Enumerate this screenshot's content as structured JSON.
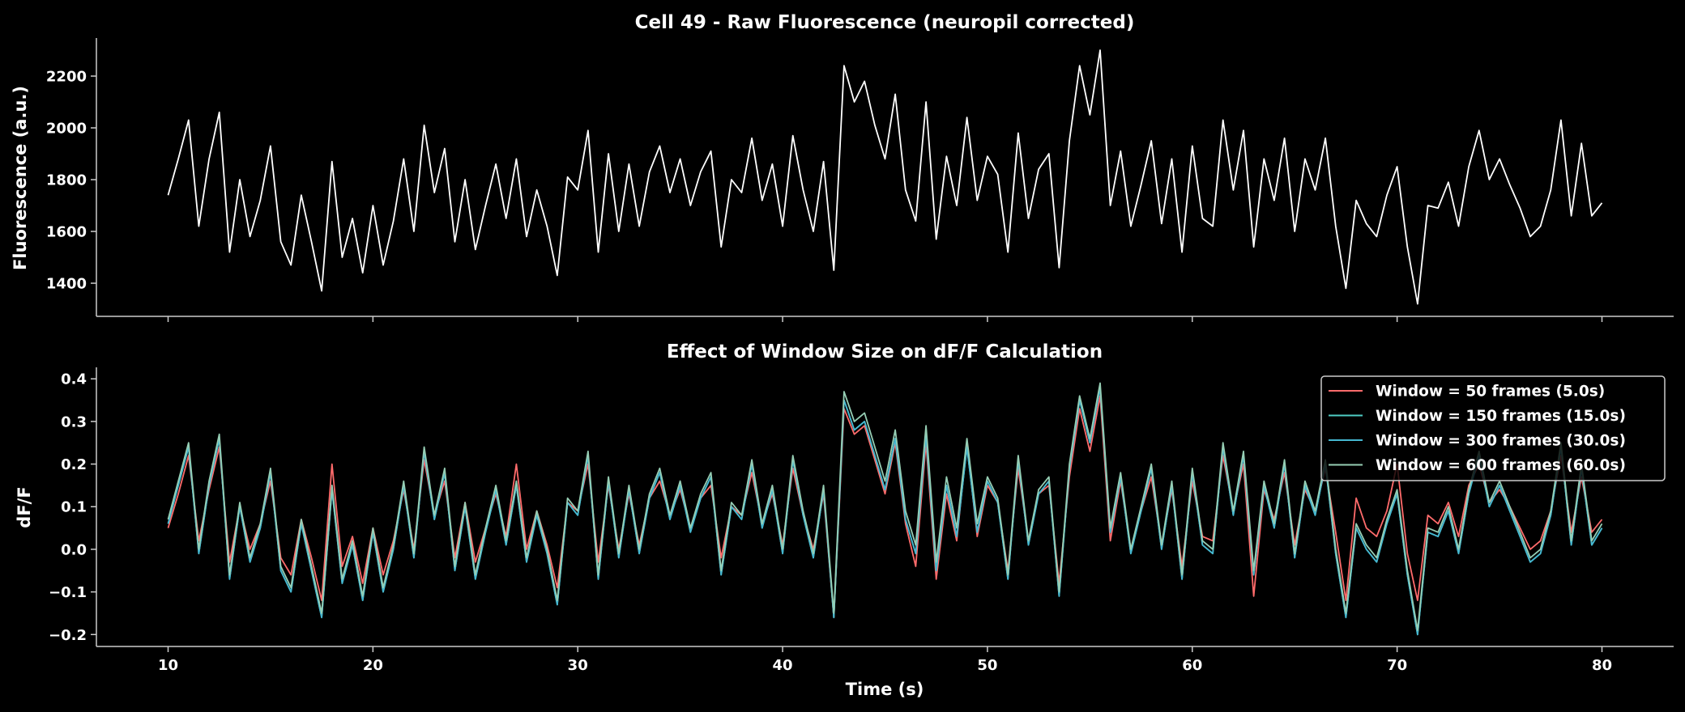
{
  "chart_data": [
    {
      "type": "line",
      "title": "Cell 49 - Raw Fluorescence (neuropil corrected)",
      "xlabel": "",
      "ylabel": "Fluorescence (a.u.)",
      "xlim": [
        6.5,
        83.5
      ],
      "ylim": [
        1272,
        2347
      ],
      "xticks": [
        10,
        20,
        30,
        40,
        50,
        60,
        70,
        80
      ],
      "yticks": [
        "1400",
        "1600",
        "1800",
        "2000",
        "2200"
      ],
      "x_start": 10,
      "x_end": 80,
      "series": [
        {
          "name": "Raw fluorescence",
          "color": "#ffffff",
          "values": [
            1740,
            1880,
            2030,
            1620,
            1880,
            2060,
            1520,
            1800,
            1580,
            1720,
            1930,
            1560,
            1470,
            1740,
            1560,
            1370,
            1870,
            1500,
            1650,
            1440,
            1700,
            1470,
            1640,
            1880,
            1600,
            2010,
            1750,
            1920,
            1560,
            1800,
            1530,
            1700,
            1860,
            1650,
            1880,
            1580,
            1760,
            1620,
            1430,
            1810,
            1760,
            1990,
            1520,
            1900,
            1600,
            1860,
            1620,
            1830,
            1930,
            1750,
            1880,
            1700,
            1830,
            1910,
            1540,
            1800,
            1750,
            1960,
            1720,
            1860,
            1620,
            1970,
            1760,
            1600,
            1870,
            1450,
            2240,
            2100,
            2180,
            2010,
            1880,
            2130,
            1760,
            1640,
            2100,
            1570,
            1890,
            1700,
            2040,
            1720,
            1890,
            1820,
            1520,
            1980,
            1650,
            1840,
            1900,
            1460,
            1950,
            2240,
            2050,
            2300,
            1700,
            1910,
            1620,
            1780,
            1950,
            1630,
            1880,
            1520,
            1930,
            1650,
            1620,
            2030,
            1760,
            1990,
            1540,
            1880,
            1720,
            1960,
            1600,
            1880,
            1760,
            1960,
            1620,
            1380,
            1720,
            1630,
            1580,
            1740,
            1850,
            1540,
            1320,
            1700,
            1690,
            1790,
            1620,
            1850,
            1990,
            1800,
            1880,
            1780,
            1690,
            1580,
            1620,
            1760,
            2030,
            1660,
            1940,
            1660,
            1710
          ]
        }
      ]
    },
    {
      "type": "line",
      "title": "Effect of Window Size on dF/F Calculation",
      "xlabel": "Time (s)",
      "ylabel": "dF/F",
      "xlim": [
        6.5,
        83.5
      ],
      "ylim": [
        -0.228,
        0.427
      ],
      "xticks": [
        10,
        20,
        30,
        40,
        50,
        60,
        70,
        80
      ],
      "xticklabels": [
        "10",
        "20",
        "30",
        "40",
        "50",
        "60",
        "70",
        "80"
      ],
      "yticks": [
        -0.2,
        -0.1,
        0.0,
        0.1,
        0.2,
        0.3,
        0.4
      ],
      "yticklabels": [
        "−0.2",
        "−0.1",
        "0.0",
        "0.1",
        "0.2",
        "0.3",
        "0.4"
      ],
      "legend_position": "top-right",
      "x_start": 10,
      "x_end": 80,
      "series": [
        {
          "name": "Window = 50 frames (5.0s)",
          "color": "#ff6b6b",
          "values": [
            0.05,
            0.13,
            0.22,
            0.02,
            0.14,
            0.24,
            -0.03,
            0.1,
            0.0,
            0.06,
            0.16,
            -0.02,
            -0.06,
            0.07,
            -0.02,
            -0.12,
            0.2,
            -0.04,
            0.03,
            -0.08,
            0.05,
            -0.06,
            0.02,
            0.14,
            0.0,
            0.21,
            0.08,
            0.16,
            -0.02,
            0.11,
            -0.03,
            0.05,
            0.13,
            0.03,
            0.2,
            0.0,
            0.09,
            0.01,
            -0.09,
            0.11,
            0.09,
            0.2,
            -0.03,
            0.15,
            0.0,
            0.13,
            0.01,
            0.12,
            0.16,
            0.08,
            0.14,
            0.05,
            0.12,
            0.15,
            -0.02,
            0.1,
            0.08,
            0.18,
            0.06,
            0.13,
            0.01,
            0.19,
            0.08,
            0.0,
            0.13,
            -0.16,
            0.33,
            0.27,
            0.29,
            0.21,
            0.13,
            0.25,
            0.06,
            -0.04,
            0.25,
            -0.07,
            0.13,
            0.02,
            0.25,
            0.03,
            0.15,
            0.11,
            -0.05,
            0.19,
            0.02,
            0.13,
            0.15,
            -0.08,
            0.17,
            0.33,
            0.23,
            0.36,
            0.02,
            0.16,
            0.0,
            0.09,
            0.17,
            0.01,
            0.14,
            -0.04,
            0.16,
            0.03,
            0.02,
            0.22,
            0.09,
            0.2,
            -0.11,
            0.14,
            0.07,
            0.18,
            0.01,
            0.14,
            0.09,
            0.19,
            0.04,
            -0.12,
            0.12,
            0.05,
            0.03,
            0.09,
            0.2,
            -0.01,
            -0.12,
            0.08,
            0.06,
            0.11,
            0.03,
            0.15,
            0.2,
            0.11,
            0.14,
            0.1,
            0.05,
            0.0,
            0.02,
            0.09,
            0.22,
            0.04,
            0.17,
            0.04,
            0.07
          ]
        },
        {
          "name": "Window = 150 frames (15.0s)",
          "color": "#4ecdc4",
          "values": [
            0.06,
            0.15,
            0.24,
            -0.01,
            0.15,
            0.26,
            -0.07,
            0.1,
            -0.03,
            0.05,
            0.18,
            -0.05,
            -0.1,
            0.06,
            -0.05,
            -0.16,
            0.14,
            -0.08,
            0.01,
            -0.12,
            0.04,
            -0.1,
            0.0,
            0.15,
            -0.02,
            0.23,
            0.07,
            0.18,
            -0.05,
            0.1,
            -0.07,
            0.04,
            0.14,
            0.01,
            0.15,
            -0.03,
            0.08,
            -0.01,
            -0.13,
            0.11,
            0.08,
            0.22,
            -0.07,
            0.16,
            -0.02,
            0.14,
            -0.01,
            0.12,
            0.18,
            0.07,
            0.15,
            0.04,
            0.12,
            0.17,
            -0.06,
            0.1,
            0.07,
            0.2,
            0.05,
            0.14,
            -0.01,
            0.21,
            0.08,
            -0.02,
            0.14,
            -0.16,
            0.35,
            0.28,
            0.3,
            0.22,
            0.14,
            0.26,
            0.07,
            -0.01,
            0.27,
            -0.05,
            0.15,
            0.03,
            0.24,
            0.04,
            0.16,
            0.11,
            -0.07,
            0.21,
            0.01,
            0.13,
            0.16,
            -0.11,
            0.19,
            0.35,
            0.25,
            0.38,
            0.04,
            0.17,
            -0.01,
            0.09,
            0.19,
            0.0,
            0.15,
            -0.07,
            0.18,
            0.01,
            -0.01,
            0.24,
            0.08,
            0.22,
            -0.06,
            0.15,
            0.05,
            0.2,
            -0.02,
            0.15,
            0.08,
            0.2,
            -0.01,
            -0.16,
            0.05,
            0.0,
            -0.03,
            0.06,
            0.13,
            -0.06,
            -0.2,
            0.04,
            0.03,
            0.09,
            -0.01,
            0.13,
            0.22,
            0.1,
            0.15,
            0.09,
            0.03,
            -0.03,
            -0.01,
            0.08,
            0.24,
            0.01,
            0.19,
            0.01,
            0.05
          ]
        },
        {
          "name": "Window = 300 frames (30.0s)",
          "color": "#45b7d1",
          "values": [
            0.06,
            0.15,
            0.24,
            -0.01,
            0.15,
            0.26,
            -0.07,
            0.1,
            -0.03,
            0.05,
            0.18,
            -0.05,
            -0.1,
            0.06,
            -0.05,
            -0.16,
            0.14,
            -0.08,
            0.01,
            -0.12,
            0.04,
            -0.1,
            0.0,
            0.15,
            -0.02,
            0.23,
            0.07,
            0.18,
            -0.05,
            0.1,
            -0.07,
            0.04,
            0.14,
            0.01,
            0.15,
            -0.03,
            0.08,
            -0.01,
            -0.13,
            0.11,
            0.08,
            0.22,
            -0.07,
            0.16,
            -0.02,
            0.14,
            -0.01,
            0.12,
            0.18,
            0.07,
            0.15,
            0.04,
            0.12,
            0.17,
            -0.06,
            0.1,
            0.07,
            0.2,
            0.05,
            0.14,
            -0.01,
            0.21,
            0.08,
            -0.02,
            0.14,
            -0.16,
            0.35,
            0.28,
            0.3,
            0.22,
            0.14,
            0.26,
            0.07,
            -0.01,
            0.27,
            -0.05,
            0.15,
            0.03,
            0.24,
            0.04,
            0.16,
            0.11,
            -0.07,
            0.21,
            0.01,
            0.13,
            0.16,
            -0.11,
            0.19,
            0.35,
            0.25,
            0.38,
            0.04,
            0.17,
            -0.01,
            0.09,
            0.19,
            0.0,
            0.15,
            -0.07,
            0.18,
            0.01,
            -0.01,
            0.24,
            0.08,
            0.22,
            -0.06,
            0.15,
            0.05,
            0.2,
            -0.02,
            0.15,
            0.08,
            0.2,
            -0.01,
            -0.16,
            0.05,
            0.0,
            -0.03,
            0.06,
            0.13,
            -0.06,
            -0.2,
            0.04,
            0.03,
            0.09,
            -0.01,
            0.13,
            0.22,
            0.1,
            0.15,
            0.09,
            0.03,
            -0.03,
            -0.01,
            0.08,
            0.24,
            0.01,
            0.19,
            0.01,
            0.05
          ]
        },
        {
          "name": "Window = 600 frames (60.0s)",
          "color": "#96ceb4",
          "values": [
            0.07,
            0.16,
            0.25,
            0.0,
            0.16,
            0.27,
            -0.06,
            0.11,
            -0.02,
            0.06,
            0.19,
            -0.04,
            -0.09,
            0.07,
            -0.04,
            -0.15,
            0.15,
            -0.07,
            0.02,
            -0.11,
            0.05,
            -0.09,
            0.01,
            0.16,
            -0.01,
            0.24,
            0.08,
            0.19,
            -0.04,
            0.11,
            -0.06,
            0.05,
            0.15,
            0.02,
            0.16,
            -0.02,
            0.09,
            0.0,
            -0.12,
            0.12,
            0.09,
            0.23,
            -0.06,
            0.17,
            -0.01,
            0.15,
            0.0,
            0.13,
            0.19,
            0.08,
            0.16,
            0.05,
            0.13,
            0.18,
            -0.05,
            0.11,
            0.08,
            0.21,
            0.06,
            0.15,
            0.0,
            0.22,
            0.09,
            -0.01,
            0.15,
            -0.15,
            0.37,
            0.3,
            0.32,
            0.24,
            0.16,
            0.28,
            0.09,
            0.01,
            0.29,
            -0.03,
            0.17,
            0.05,
            0.26,
            0.06,
            0.17,
            0.12,
            -0.06,
            0.22,
            0.02,
            0.14,
            0.17,
            -0.1,
            0.2,
            0.36,
            0.26,
            0.39,
            0.05,
            0.18,
            0.0,
            0.1,
            0.2,
            0.01,
            0.16,
            -0.06,
            0.19,
            0.02,
            0.0,
            0.25,
            0.09,
            0.23,
            -0.05,
            0.16,
            0.06,
            0.21,
            -0.01,
            0.16,
            0.09,
            0.21,
            0.0,
            -0.15,
            0.06,
            0.01,
            -0.02,
            0.07,
            0.14,
            -0.05,
            -0.19,
            0.05,
            0.04,
            0.1,
            0.0,
            0.14,
            0.23,
            0.11,
            0.16,
            0.1,
            0.04,
            -0.02,
            0.0,
            0.09,
            0.25,
            0.02,
            0.2,
            0.02,
            0.06
          ]
        }
      ]
    }
  ]
}
